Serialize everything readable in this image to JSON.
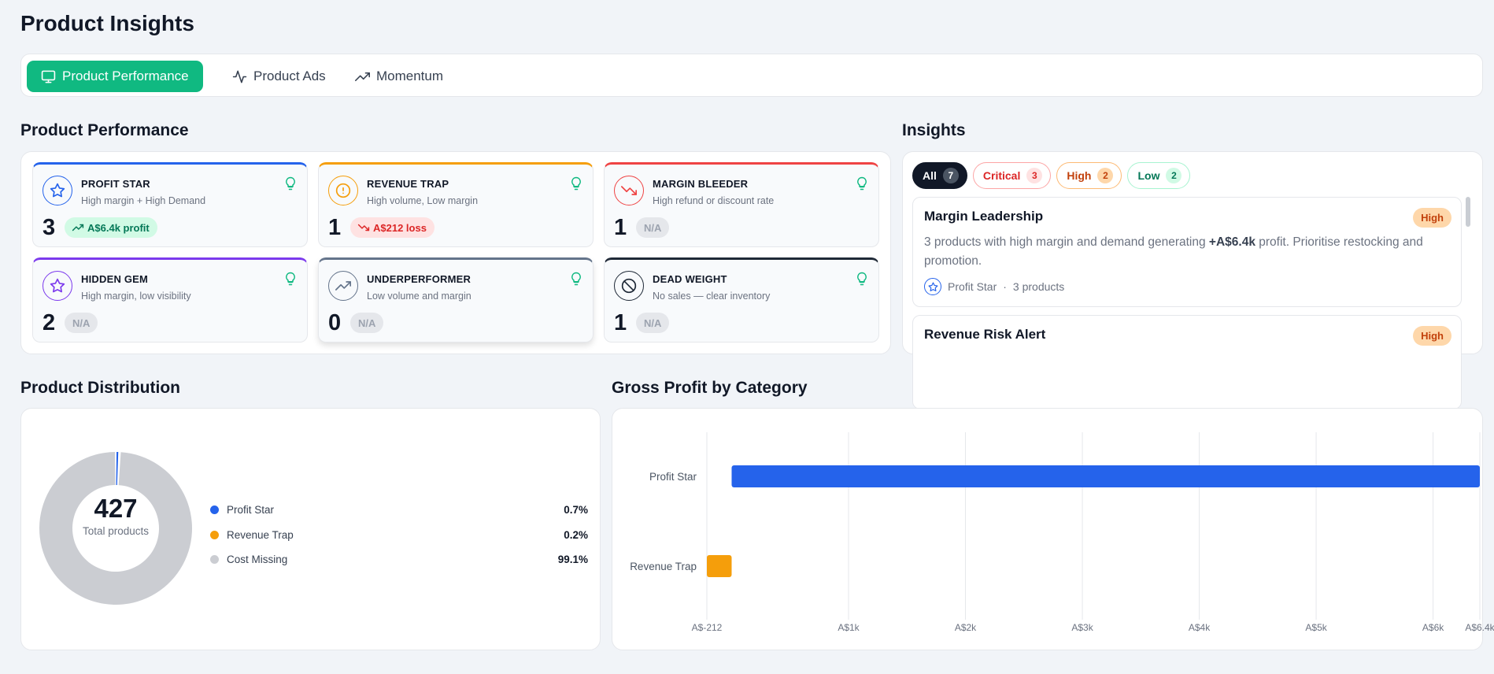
{
  "page": {
    "title": "Product Insights"
  },
  "tabs": [
    {
      "label": "Product Performance",
      "icon": "monitor-icon",
      "active": true
    },
    {
      "label": "Product Ads",
      "icon": "activity-icon",
      "active": false
    },
    {
      "label": "Momentum",
      "icon": "trending-up-icon",
      "active": false
    }
  ],
  "performance": {
    "title": "Product Performance",
    "cards": [
      {
        "title": "PROFIT STAR",
        "subtitle": "High margin + High Demand",
        "count": "3",
        "badge": "A$6.4k profit",
        "badge_type": "profit",
        "color": "#2563eb",
        "icon": "star-icon"
      },
      {
        "title": "REVENUE TRAP",
        "subtitle": "High volume, Low margin",
        "count": "1",
        "badge": "A$212 loss",
        "badge_type": "loss",
        "color": "#f59e0b",
        "icon": "alert-circle-icon"
      },
      {
        "title": "MARGIN BLEEDER",
        "subtitle": "High refund or discount rate",
        "count": "1",
        "badge": "N/A",
        "badge_type": "na",
        "color": "#ef4444",
        "icon": "trending-down-icon"
      },
      {
        "title": "HIDDEN GEM",
        "subtitle": "High margin, low visibility",
        "count": "2",
        "badge": "N/A",
        "badge_type": "na",
        "color": "#7c3aed",
        "icon": "star-icon"
      },
      {
        "title": "UNDERPERFORMER",
        "subtitle": "Low volume and margin",
        "count": "0",
        "badge": "N/A",
        "badge_type": "na",
        "color": "#64748b",
        "icon": "trending-up-icon"
      },
      {
        "title": "DEAD WEIGHT",
        "subtitle": "No sales — clear inventory",
        "count": "1",
        "badge": "N/A",
        "badge_type": "na",
        "color": "#1f2937",
        "icon": "ban-icon"
      }
    ]
  },
  "insights": {
    "title": "Insights",
    "filters": [
      {
        "label": "All",
        "count": "7",
        "style": "all"
      },
      {
        "label": "Critical",
        "count": "3",
        "style": "crit"
      },
      {
        "label": "High",
        "count": "2",
        "style": "high"
      },
      {
        "label": "Low",
        "count": "2",
        "style": "low"
      }
    ],
    "items": [
      {
        "title": "Margin Leadership",
        "priority": "High",
        "desc_before": "3 products with high margin and demand generating ",
        "desc_bold": "+A$6.4k",
        "desc_after": " profit. Prioritise restocking and promotion.",
        "category": "Profit Star",
        "product_count": "3 products"
      },
      {
        "title": "Revenue Risk Alert",
        "priority": "High"
      }
    ]
  },
  "distribution": {
    "title": "Product Distribution",
    "total": "427",
    "total_label": "Total products",
    "legend": [
      {
        "label": "Profit Star",
        "pct": "0.7%",
        "value": 0.7,
        "color": "#2563eb"
      },
      {
        "label": "Revenue Trap",
        "pct": "0.2%",
        "value": 0.2,
        "color": "#f59e0b"
      },
      {
        "label": "Cost Missing",
        "pct": "99.1%",
        "value": 99.1,
        "color": "#cbcdd2"
      }
    ]
  },
  "gross_profit": {
    "title": "Gross Profit by Category"
  },
  "chart_data": [
    {
      "type": "pie",
      "title": "Product Distribution",
      "categories": [
        "Profit Star",
        "Revenue Trap",
        "Cost Missing"
      ],
      "values": [
        0.7,
        0.2,
        99.1
      ],
      "colors": [
        "#2563eb",
        "#f59e0b",
        "#cbcdd2"
      ],
      "center_value": "427",
      "center_label": "Total products"
    },
    {
      "type": "bar",
      "orientation": "horizontal",
      "title": "Gross Profit by Category",
      "categories": [
        "Profit Star",
        "Revenue Trap"
      ],
      "values": [
        6400,
        -212
      ],
      "colors": [
        "#2563eb",
        "#f59e0b"
      ],
      "xlim": [
        -212,
        6400
      ],
      "ticks": [
        -212,
        1000,
        2000,
        3000,
        4000,
        5000,
        6000,
        6400
      ],
      "tick_labels": [
        "A$-212",
        "A$1k",
        "A$2k",
        "A$3k",
        "A$4k",
        "A$5k",
        "A$6k",
        "A$6.4k"
      ],
      "grid": true
    }
  ]
}
